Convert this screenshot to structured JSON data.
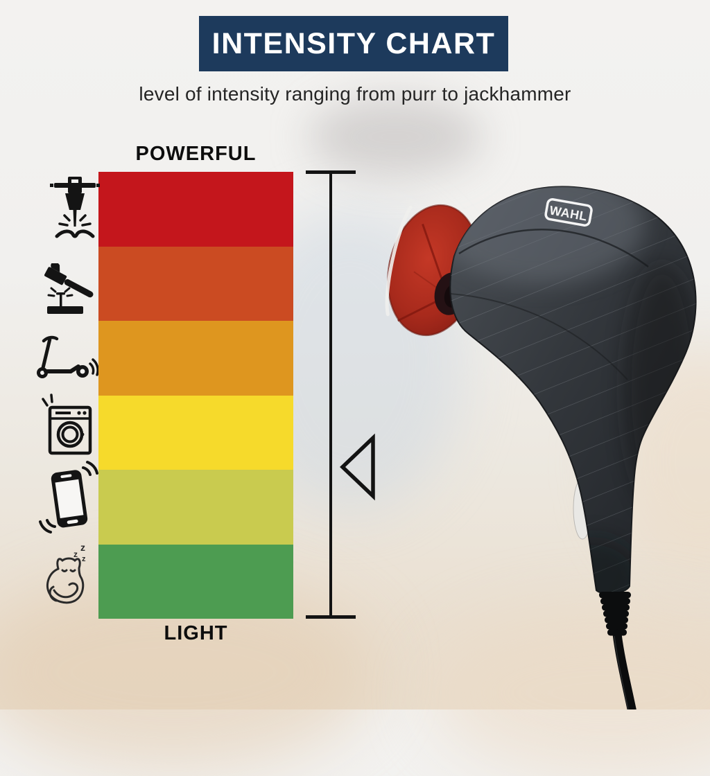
{
  "header": {
    "title": "INTENSITY CHART",
    "subtitle": "level of intensity ranging from purr to jackhammer",
    "banner_bg": "#1d3a5c",
    "banner_text_color": "#ffffff"
  },
  "chart_data": {
    "type": "bar",
    "title": "INTENSITY CHART",
    "subtitle": "level of intensity ranging from purr to jackhammer",
    "orientation": "vertical intensity scale, strongest at top",
    "top_label": "POWERFUL",
    "bottom_label": "LIGHT",
    "grid": false,
    "legend_position": "icons on left of bar",
    "levels": [
      {
        "rank": 1,
        "intensity": "highest",
        "icon": "jackhammer-icon",
        "label": "jackhammer",
        "color": "#c4161c"
      },
      {
        "rank": 2,
        "intensity": "high",
        "icon": "hammer-icon",
        "label": "hammer",
        "color": "#cb4b22"
      },
      {
        "rank": 3,
        "intensity": "medium-high",
        "icon": "scooter-icon",
        "label": "scooter",
        "color": "#de961f"
      },
      {
        "rank": 4,
        "intensity": "medium",
        "icon": "washing-machine-icon",
        "label": "washing machine",
        "color": "#f6da2b"
      },
      {
        "rank": 5,
        "intensity": "low",
        "icon": "vibrating-phone-icon",
        "label": "vibrating phone",
        "color": "#c9cb4f"
      },
      {
        "rank": 6,
        "intensity": "lowest",
        "icon": "sleeping-cat-icon",
        "label": "purring cat",
        "color": "#4d9c51"
      }
    ]
  },
  "scale": {
    "top_label": "POWERFUL",
    "bottom_label": "LIGHT"
  },
  "product": {
    "brand_label": "WAHL",
    "body_color": "#32363b",
    "attachment_color": "#a82a1c"
  },
  "icons": {
    "sleep_z": "z"
  }
}
